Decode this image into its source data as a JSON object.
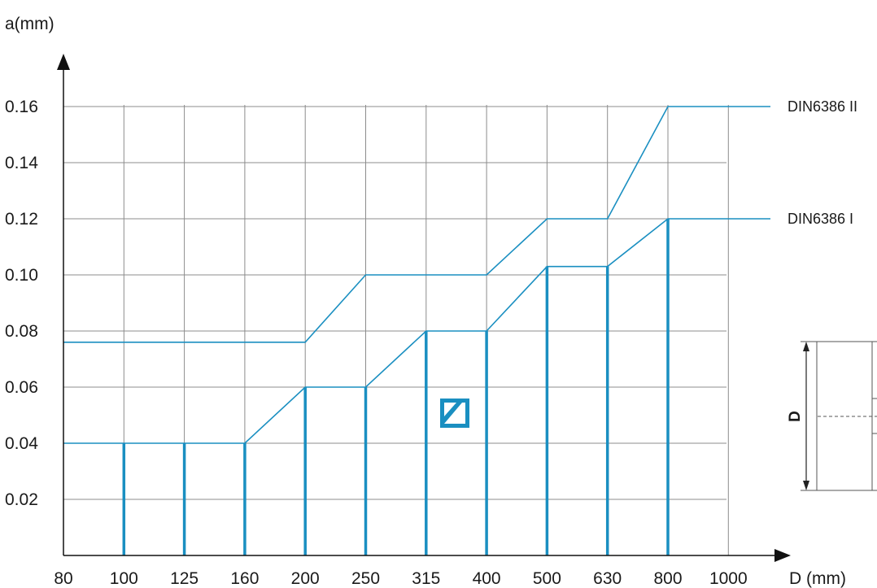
{
  "chart_data": {
    "type": "line",
    "title": "",
    "ylabel": "a(mm)",
    "xlabel": "D (mm)",
    "categories": [
      "80",
      "100",
      "125",
      "160",
      "200",
      "250",
      "315",
      "400",
      "500",
      "630",
      "800",
      "1000"
    ],
    "y_ticks": [
      "0.02",
      "0.04",
      "0.06",
      "0.08",
      "0.10",
      "0.12",
      "0.14",
      "0.16"
    ],
    "ylim": [
      0,
      0.18
    ],
    "grid": true,
    "series": [
      {
        "name": "DIN6386 II",
        "color": "#1a8fc1",
        "points": [
          {
            "x": "80",
            "y": 0.076
          },
          {
            "x": "200",
            "y": 0.076
          },
          {
            "x": "250",
            "y": 0.1
          },
          {
            "x": "400",
            "y": 0.1
          },
          {
            "x": "500",
            "y": 0.12
          },
          {
            "x": "630",
            "y": 0.12
          },
          {
            "x": "800",
            "y": 0.16
          }
        ]
      },
      {
        "name": "DIN6386 I",
        "color": "#1a8fc1",
        "points": [
          {
            "x": "80",
            "y": 0.04
          },
          {
            "x": "160",
            "y": 0.04
          },
          {
            "x": "200",
            "y": 0.06
          },
          {
            "x": "250",
            "y": 0.06
          },
          {
            "x": "315",
            "y": 0.08
          },
          {
            "x": "400",
            "y": 0.08
          },
          {
            "x": "500",
            "y": 0.103
          },
          {
            "x": "630",
            "y": 0.103
          },
          {
            "x": "800",
            "y": 0.12
          }
        ]
      }
    ],
    "bars": [
      {
        "x": "100",
        "y": 0.04
      },
      {
        "x": "125",
        "y": 0.04
      },
      {
        "x": "160",
        "y": 0.04
      },
      {
        "x": "200",
        "y": 0.06
      },
      {
        "x": "250",
        "y": 0.06
      },
      {
        "x": "315",
        "y": 0.08
      },
      {
        "x": "400",
        "y": 0.08
      },
      {
        "x": "500",
        "y": 0.103
      },
      {
        "x": "630",
        "y": 0.103
      },
      {
        "x": "800",
        "y": 0.12
      }
    ],
    "bar_color": "#1a8fc1",
    "diagram_label": "D"
  }
}
